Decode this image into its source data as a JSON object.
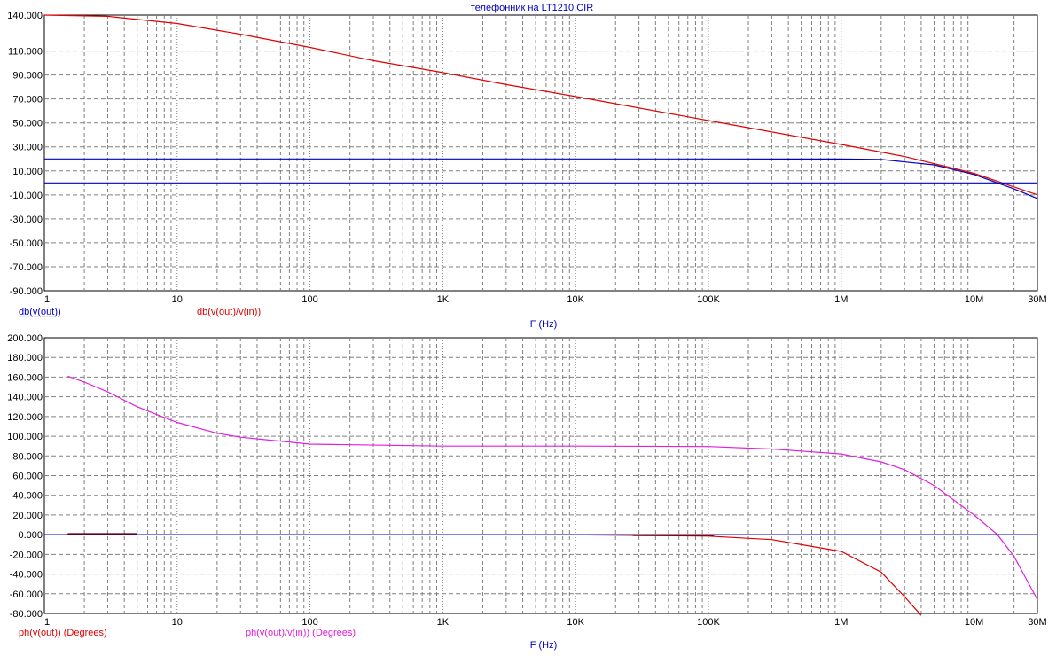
{
  "title": "телефонник на LT1210.CIR",
  "xlabel": "F (Hz)",
  "colors": {
    "blue": "#0000c0",
    "red": "#e00000",
    "magenta": "#e020e0",
    "grid": "#808080"
  },
  "chart_data": [
    {
      "type": "line",
      "x_scale": "log",
      "xlim": [
        1,
        30000000
      ],
      "x_tick_values": [
        1,
        10,
        100,
        1000,
        10000,
        100000,
        1000000,
        10000000,
        30000000
      ],
      "x_tick_labels": [
        "1",
        "10",
        "100",
        "1K",
        "10K",
        "100K",
        "1M",
        "10M",
        "30M"
      ],
      "xlabel": "F (Hz)",
      "ylim": [
        -90,
        140
      ],
      "y_tick_values": [
        140,
        110,
        90,
        70,
        50,
        30,
        10,
        -10,
        -30,
        -50,
        -70,
        -90
      ],
      "y_tick_labels": [
        "140.000",
        "110.000",
        "90.000",
        "70.000",
        "50.000",
        "30.000",
        "10.000",
        "-10.000",
        "-30.000",
        "-50.000",
        "-70.000",
        "-90.000"
      ],
      "series": [
        {
          "name": "db(v(out))",
          "color": "#0000c0",
          "x": [
            1,
            10,
            100,
            1000,
            10000,
            100000,
            1000000,
            2000000,
            5000000,
            10000000,
            20000000,
            30000000
          ],
          "y": [
            20,
            20,
            20,
            20,
            20,
            20,
            19.9,
            19.5,
            15,
            7,
            -5,
            -13
          ]
        },
        {
          "name": "db(v(out)/v(in))",
          "color": "#e00000",
          "x": [
            1,
            3,
            10,
            30,
            100,
            300,
            1000,
            3000,
            10000,
            100000,
            1000000,
            3000000,
            10000000,
            30000000
          ],
          "y": [
            140,
            139,
            133,
            124,
            113,
            102,
            92,
            82,
            72,
            52,
            32,
            22,
            8,
            -10
          ]
        },
        {
          "name": "",
          "color": "#0000c0",
          "x": [
            1,
            30000000
          ],
          "y": [
            0,
            0
          ]
        }
      ]
    },
    {
      "type": "line",
      "x_scale": "log",
      "xlim": [
        1,
        30000000
      ],
      "x_tick_values": [
        1,
        10,
        100,
        1000,
        10000,
        100000,
        1000000,
        10000000,
        30000000
      ],
      "x_tick_labels": [
        "1",
        "10",
        "100",
        "1K",
        "10K",
        "100K",
        "1M",
        "10M",
        "30M"
      ],
      "xlabel": "F (Hz)",
      "ylim": [
        -80,
        200
      ],
      "y_tick_values": [
        200,
        180,
        160,
        140,
        120,
        100,
        80,
        60,
        40,
        20,
        0,
        -20,
        -40,
        -60,
        -80
      ],
      "y_tick_labels": [
        "200.000",
        "180.000",
        "160.000",
        "140.000",
        "120.000",
        "100.000",
        "80.000",
        "60.000",
        "40.000",
        "20.000",
        "0.000",
        "-20.000",
        "-40.000",
        "-60.000",
        "-80.000"
      ],
      "series": [
        {
          "name": "ph(v(out)) (Degrees)",
          "color": "#e00000",
          "x": [
            1.5,
            10000,
            100000,
            300000,
            1000000,
            2000000,
            3000000,
            4000000
          ],
          "y": [
            0,
            -0.1,
            -1.5,
            -5,
            -17,
            -38,
            -63,
            -82
          ]
        },
        {
          "name": "ph(v(out)/v(in)) (Degrees)",
          "color": "#e020e0",
          "x": [
            1.5,
            2,
            3,
            5,
            7,
            10,
            20,
            30,
            50,
            100,
            1000,
            10000,
            100000,
            300000,
            1000000,
            2000000,
            3000000,
            5000000,
            10000000,
            15000000,
            20000000,
            30000000
          ],
          "y": [
            161,
            155,
            145,
            130,
            122,
            114,
            103,
            99,
            96,
            92,
            90,
            90,
            89.5,
            87,
            82,
            74,
            66,
            50,
            20,
            0,
            -22,
            -66
          ]
        },
        {
          "name": "",
          "color": "#0000c0",
          "x": [
            1,
            30000000
          ],
          "y": [
            0,
            0
          ]
        },
        {
          "name": "",
          "color": "#600020",
          "x": [
            1.5,
            5
          ],
          "y": [
            0.6,
            0.6
          ]
        },
        {
          "name": "",
          "color": "#600020",
          "x": [
            27000,
            110000
          ],
          "y": [
            -0.4,
            -0.4
          ]
        }
      ]
    }
  ]
}
